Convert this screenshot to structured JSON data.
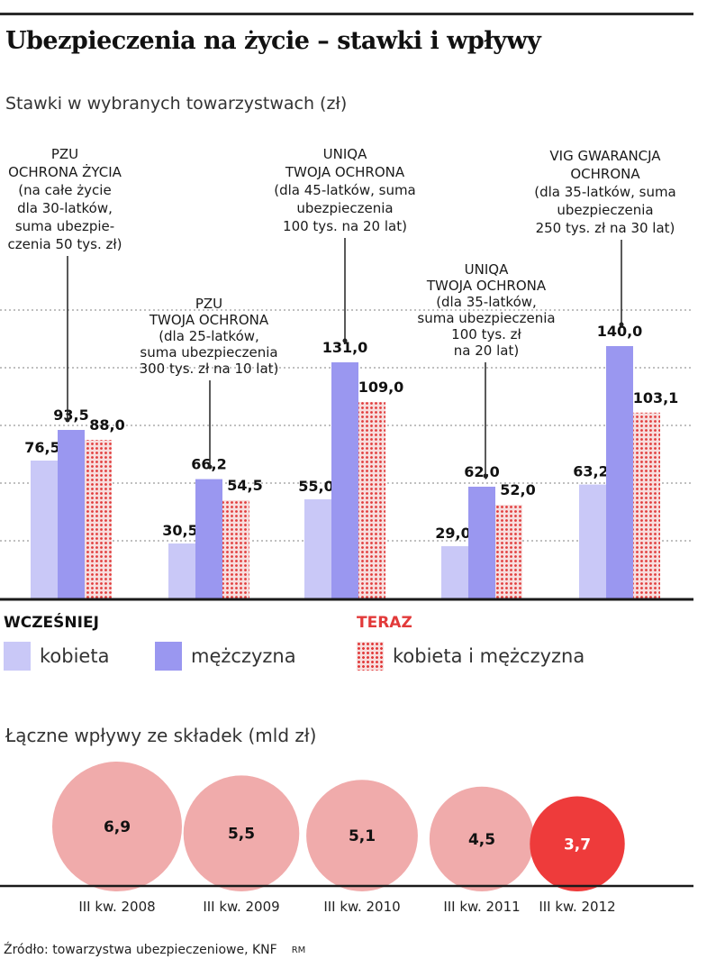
{
  "title": "Ubezpieczenia na życie – stawki i wpływy",
  "subtitle": "Stawki w wybranych towarzystwach (zł)",
  "colors": {
    "kobieta": "#c9c8f7",
    "mezczyzna": "#9a97f0",
    "teraz": "#e13a3a",
    "teraz_bg": "#f7dede",
    "bubble": "#f0abab",
    "bubble_latest": "#ee3b3b",
    "accent": "#e23a3a"
  },
  "chart_data": [
    {
      "type": "bar",
      "title": "Stawki w wybranych towarzystwach (zł)",
      "ylim": [
        0,
        165
      ],
      "grid": true,
      "series_names": [
        "kobieta",
        "mężczyzna",
        "kobieta i mężczyzna"
      ],
      "groups": [
        {
          "label_lines": [
            "PZU",
            "OCHRONA ŻYCIA",
            "(na całe życie",
            "dla 30-latków,",
            "suma ubezpie-",
            "czenia 50 tys. zł)"
          ],
          "values": [
            76.5,
            93.5,
            88.0
          ],
          "labels": [
            "76,5",
            "93,5",
            "88,0"
          ]
        },
        {
          "label_lines": [
            "PZU",
            "TWOJA OCHRONA",
            "(dla 25-latków,",
            "suma ubezpieczenia",
            "300 tys. zł na 10 lat)"
          ],
          "values": [
            30.5,
            66.2,
            54.5
          ],
          "labels": [
            "30,5",
            "66,2",
            "54,5"
          ]
        },
        {
          "label_lines": [
            "UNIQA",
            "TWOJA OCHRONA",
            "(dla 45-latków, suma",
            "ubezpieczenia",
            "100 tys. na 20 lat)"
          ],
          "values": [
            55.0,
            131.0,
            109.0
          ],
          "labels": [
            "55,0",
            "131,0",
            "109,0"
          ]
        },
        {
          "label_lines": [
            "UNIQA",
            "TWOJA OCHRONA",
            "(dla 35-latków,",
            "suma ubezpieczenia",
            "100 tys. zł",
            "na 20 lat)"
          ],
          "values": [
            29.0,
            62.0,
            52.0
          ],
          "labels": [
            "29,0",
            "62,0",
            "52,0"
          ]
        },
        {
          "label_lines": [
            "VIG GWARANCJA",
            "OCHRONA",
            "(dla 35-latków, suma",
            "ubezpieczenia",
            "250 tys. zł na 30 lat)"
          ],
          "values": [
            63.2,
            140.0,
            103.1
          ],
          "labels": [
            "63,2",
            "140,0",
            "103,1"
          ]
        }
      ]
    },
    {
      "type": "bubble",
      "title": "Łączne wpływy ze składek (mld zł)",
      "categories": [
        "III kw. 2008",
        "III kw. 2009",
        "III kw. 2010",
        "III kw. 2011",
        "III kw. 2012"
      ],
      "values": [
        6.9,
        5.5,
        5.1,
        4.5,
        3.7
      ],
      "labels": [
        "6,9",
        "5,5",
        "5,1",
        "4,5",
        "3,7"
      ]
    }
  ],
  "legend": {
    "wczesniej": "WCZEŚNIEJ",
    "teraz": "TERAZ",
    "kobieta": "kobieta",
    "mezczyzna": "mężczyzna",
    "kobieta_i_mezczyzna": "kobieta i mężczyzna"
  },
  "subtitle2": "Łączne wpływy ze składek (mld zł)",
  "source": "Źródło: towarzystwa ubezpieczeniowe, KNF",
  "credit": "RM"
}
